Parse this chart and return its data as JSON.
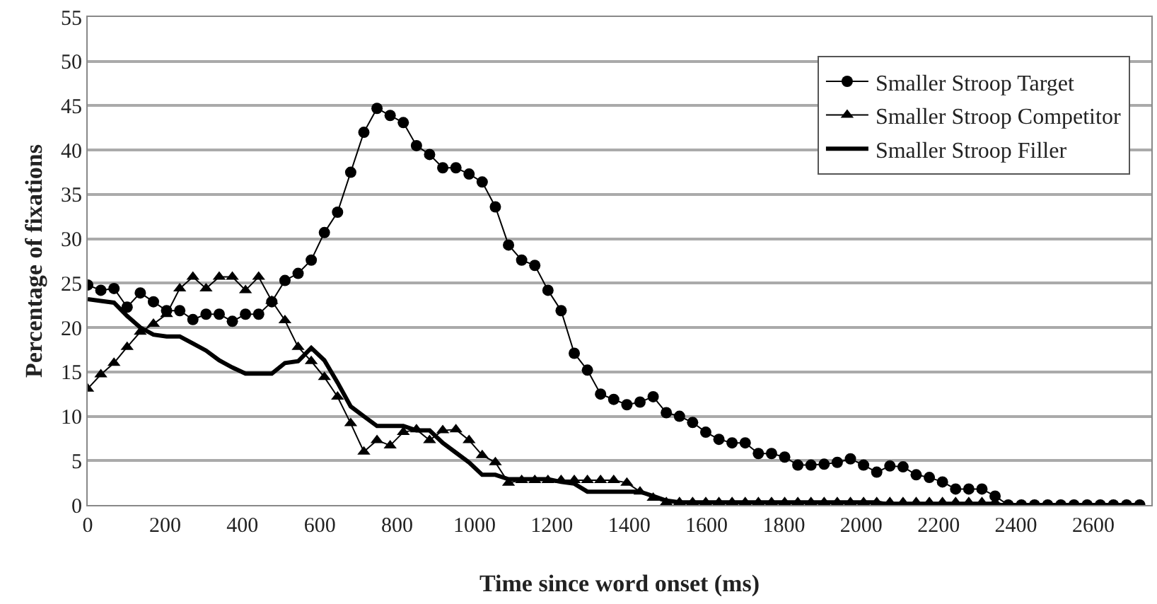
{
  "chart_data": {
    "type": "line",
    "xlabel": "Time since word onset (ms)",
    "ylabel": "Percentage of fixations",
    "x": [
      0,
      34,
      68,
      102,
      136,
      170,
      204,
      238,
      272,
      306,
      340,
      374,
      408,
      442,
      476,
      510,
      544,
      578,
      612,
      646,
      680,
      714,
      748,
      782,
      816,
      850,
      884,
      918,
      952,
      986,
      1020,
      1054,
      1088,
      1122,
      1156,
      1190,
      1224,
      1258,
      1292,
      1326,
      1360,
      1394,
      1428,
      1462,
      1496,
      1530,
      1564,
      1598,
      1632,
      1666,
      1700,
      1734,
      1768,
      1802,
      1836,
      1870,
      1904,
      1938,
      1972,
      2006,
      2040,
      2074,
      2108,
      2142,
      2176,
      2210,
      2244,
      2278,
      2312,
      2346,
      2380,
      2414,
      2448,
      2482,
      2516,
      2550,
      2584,
      2618,
      2652,
      2686,
      2720
    ],
    "series": [
      {
        "name": "Smaller Stroop Target",
        "color": "#000000",
        "marker": "circle",
        "values": [
          24.8,
          24.2,
          24.4,
          22.3,
          23.9,
          22.9,
          21.9,
          21.9,
          20.9,
          21.5,
          21.5,
          20.7,
          21.5,
          21.5,
          22.9,
          25.3,
          26.1,
          27.6,
          30.7,
          33.0,
          37.5,
          42.0,
          44.7,
          43.9,
          43.1,
          40.5,
          39.5,
          38.0,
          38.0,
          37.3,
          36.4,
          33.6,
          29.3,
          27.6,
          27.0,
          24.2,
          21.9,
          17.1,
          15.2,
          12.5,
          11.9,
          11.3,
          11.6,
          12.2,
          10.4,
          10.0,
          9.3,
          8.2,
          7.4,
          7.0,
          7.0,
          5.8,
          5.8,
          5.4,
          4.5,
          4.5,
          4.6,
          4.8,
          5.2,
          4.5,
          3.7,
          4.4,
          4.3,
          3.4,
          3.1,
          2.6,
          1.8,
          1.8,
          1.8,
          1.0,
          0,
          0,
          0,
          0,
          0,
          0,
          0,
          0,
          0,
          0,
          0
        ]
      },
      {
        "name": "Smaller Stroop Competitor",
        "color": "#000000",
        "marker": "triangle",
        "values": [
          13.1,
          14.7,
          16.0,
          17.8,
          19.5,
          20.4,
          21.5,
          24.4,
          25.7,
          24.4,
          25.7,
          25.7,
          24.2,
          25.7,
          23.0,
          20.8,
          17.8,
          16.2,
          14.4,
          12.2,
          9.2,
          6.0,
          7.3,
          6.7,
          8.2,
          8.5,
          7.3,
          8.4,
          8.5,
          7.3,
          5.6,
          4.8,
          2.5,
          2.8,
          2.8,
          2.8,
          2.8,
          2.8,
          2.8,
          2.8,
          2.8,
          2.5,
          1.5,
          0.8,
          0.3,
          0.3,
          0.3,
          0.3,
          0.3,
          0.3,
          0.3,
          0.3,
          0.3,
          0.3,
          0.3,
          0.3,
          0.3,
          0.3,
          0.3,
          0.3,
          0.3,
          0.3,
          0.3,
          0.3,
          0.3,
          0.3,
          0.3,
          0.3,
          0.3,
          0.3,
          0,
          0,
          0,
          0,
          0,
          0,
          0,
          0,
          0,
          0,
          0
        ]
      },
      {
        "name": "Smaller Stroop Filler",
        "color": "#000000",
        "marker": "none",
        "values": [
          23.2,
          23.0,
          22.8,
          21.3,
          20.0,
          19.2,
          19.0,
          19.0,
          18.2,
          17.4,
          16.3,
          15.5,
          14.8,
          14.8,
          14.8,
          16.0,
          16.2,
          17.7,
          16.3,
          13.8,
          11.1,
          10.0,
          8.9,
          8.9,
          8.9,
          8.4,
          8.4,
          7.0,
          5.9,
          4.8,
          3.4,
          3.4,
          2.9,
          2.9,
          2.9,
          2.9,
          2.6,
          2.4,
          1.5,
          1.5,
          1.5,
          1.5,
          1.5,
          1.0,
          0.5,
          0.3,
          0.3,
          0.3,
          0.3,
          0.3,
          0.3,
          0.3,
          0.3,
          0.3,
          0.3,
          0.3,
          0.3,
          0.3,
          0.3,
          0.3,
          0.3,
          0,
          0,
          0,
          0,
          0,
          0,
          0,
          0,
          0,
          0,
          0,
          0,
          0,
          0,
          0,
          0,
          0,
          0,
          0,
          0
        ]
      }
    ],
    "xlim": [
      0,
      2750
    ],
    "xticks": [
      0,
      200,
      400,
      600,
      800,
      1000,
      1200,
      1400,
      1600,
      1800,
      2000,
      2200,
      2400,
      2600
    ],
    "ylim": [
      0,
      55
    ],
    "yticks": [
      0,
      5,
      10,
      15,
      20,
      25,
      30,
      35,
      40,
      45,
      50,
      55
    ],
    "grid": "y",
    "legend": "top right",
    "line_style": "solid"
  }
}
